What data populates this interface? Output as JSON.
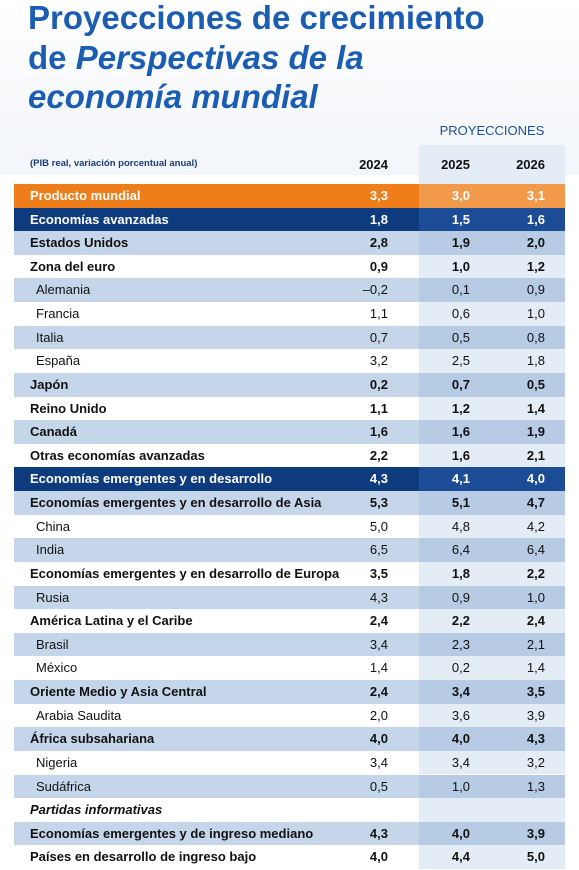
{
  "title": {
    "line1": "Proyecciones de crecimiento",
    "line2a": "de",
    "line2b": "Perspectivas de la",
    "line3": "economía mundial"
  },
  "header": {
    "projections": "PROYECCIONES",
    "note": "(PIB real, variación porcentual anual)",
    "columns": [
      "2024",
      "2025",
      "2026"
    ]
  },
  "table": {
    "rows": [
      {
        "label": "Producto mundial",
        "values": [
          "3,3",
          "3,0",
          "3,1"
        ]
      },
      {
        "label": "Economías avanzadas",
        "values": [
          "1,8",
          "1,5",
          "1,6"
        ]
      },
      {
        "label": "Estados Unidos",
        "values": [
          "2,8",
          "1,9",
          "2,0"
        ]
      },
      {
        "label": "Zona del euro",
        "values": [
          "0,9",
          "1,0",
          "1,2"
        ]
      },
      {
        "label": "Alemania",
        "values": [
          "–0,2",
          "0,1",
          "0,9"
        ]
      },
      {
        "label": "Francia",
        "values": [
          "1,1",
          "0,6",
          "1,0"
        ]
      },
      {
        "label": "Italia",
        "values": [
          "0,7",
          "0,5",
          "0,8"
        ]
      },
      {
        "label": "España",
        "values": [
          "3,2",
          "2,5",
          "1,8"
        ]
      },
      {
        "label": "Japón",
        "values": [
          "0,2",
          "0,7",
          "0,5"
        ]
      },
      {
        "label": "Reino Unido",
        "values": [
          "1,1",
          "1,2",
          "1,4"
        ]
      },
      {
        "label": "Canadá",
        "values": [
          "1,6",
          "1,6",
          "1,9"
        ]
      },
      {
        "label": "Otras economías avanzadas",
        "values": [
          "2,2",
          "1,6",
          "2,1"
        ]
      },
      {
        "label": "Economías emergentes y en desarrollo",
        "values": [
          "4,3",
          "4,1",
          "4,0"
        ]
      },
      {
        "label": "Economías emergentes y en desarrollo de Asia",
        "values": [
          "5,3",
          "5,1",
          "4,7"
        ]
      },
      {
        "label": "China",
        "values": [
          "5,0",
          "4,8",
          "4,2"
        ]
      },
      {
        "label": "India",
        "values": [
          "6,5",
          "6,4",
          "6,4"
        ]
      },
      {
        "label": "Economías emergentes y en desarrollo de Europa",
        "values": [
          "3,5",
          "1,8",
          "2,2"
        ]
      },
      {
        "label": "Rusia",
        "values": [
          "4,3",
          "0,9",
          "1,0"
        ]
      },
      {
        "label": "América Latina y el Caribe",
        "values": [
          "2,4",
          "2,2",
          "2,4"
        ]
      },
      {
        "label": "Brasil",
        "values": [
          "3,4",
          "2,3",
          "2,1"
        ]
      },
      {
        "label": "México",
        "values": [
          "1,4",
          "0,2",
          "1,4"
        ]
      },
      {
        "label": "Oriente Medio y Asia Central",
        "values": [
          "2,4",
          "3,4",
          "3,5"
        ]
      },
      {
        "label": "Arabia Saudita",
        "values": [
          "2,0",
          "3,6",
          "3,9"
        ]
      },
      {
        "label": "África subsahariana",
        "values": [
          "4,0",
          "4,0",
          "4,3"
        ]
      },
      {
        "label": "Nigeria",
        "values": [
          "3,4",
          "3,4",
          "3,2"
        ]
      },
      {
        "label": "Sudáfrica",
        "values": [
          "0,5",
          "1,0",
          "1,3"
        ]
      },
      {
        "label": "Partidas informativas"
      },
      {
        "label": "Economías emergentes y de ingreso mediano",
        "values": [
          "4,3",
          "4,0",
          "3,9"
        ]
      },
      {
        "label": "Países en desarrollo de ingreso bajo",
        "values": [
          "4,0",
          "4,4",
          "5,0"
        ]
      }
    ]
  }
}
